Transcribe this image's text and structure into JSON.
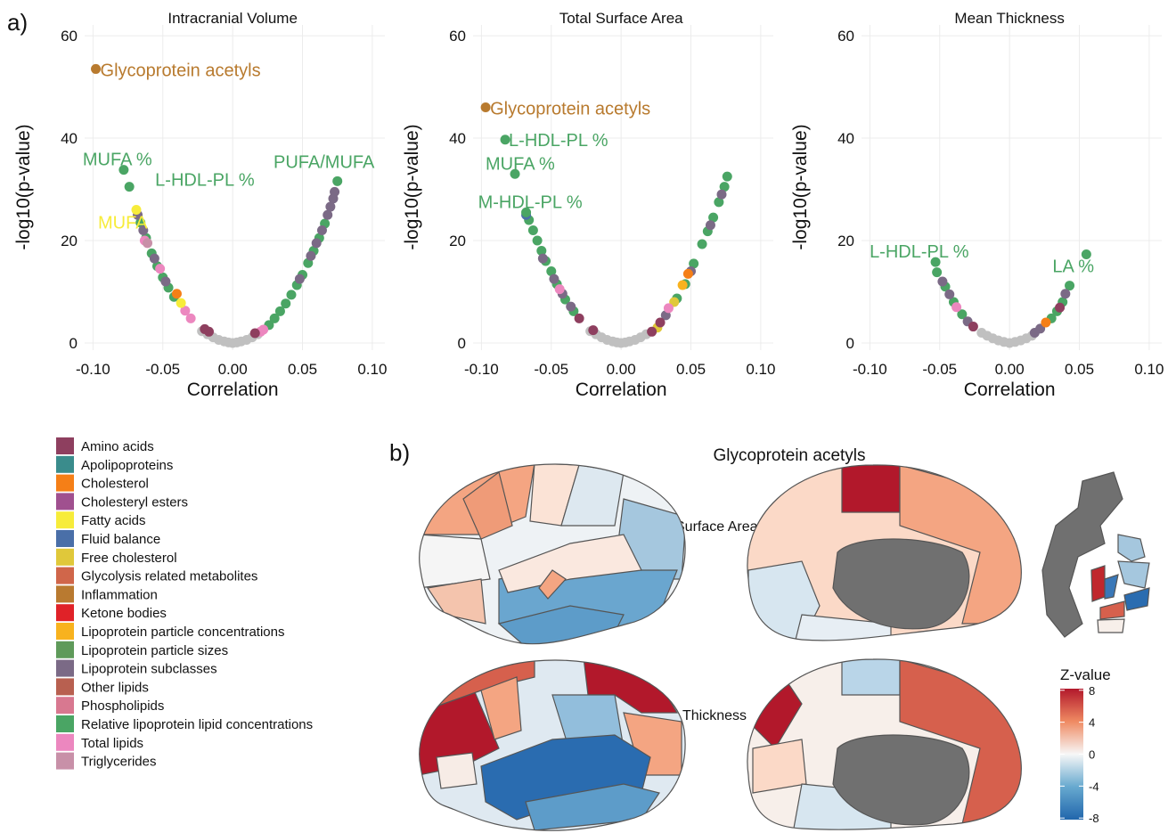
{
  "panel_labels": [
    "a)",
    "b)"
  ],
  "chart_data": [
    {
      "type": "scatter",
      "title": "Intracranial Volume",
      "x_label": "Correlation",
      "y_label": "-log10(p-value)",
      "xlim": [
        -0.106,
        0.109
      ],
      "ylim": [
        -1.4,
        62.1
      ],
      "xticks": [
        {
          "value": -0.1,
          "label": "-0.10"
        },
        {
          "value": -0.05,
          "label": "-0.05"
        },
        {
          "value": 0,
          "label": "0.00"
        },
        {
          "value": 0.05,
          "label": "0.05"
        },
        {
          "value": 0.1,
          "label": "0.10"
        }
      ],
      "yticks": [
        0,
        20,
        40,
        60
      ],
      "grid": true,
      "series": [
        {
          "color": "#c0c0c0",
          "x": [
            -0.022,
            -0.018,
            -0.014,
            -0.01,
            -0.006,
            -0.003,
            0,
            0.003,
            0.006,
            0.01,
            0.014,
            0.018
          ],
          "values": [
            2.3,
            1.7,
            1.1,
            0.6,
            0.3,
            0.1,
            0,
            0.1,
            0.3,
            0.6,
            1.1,
            1.7
          ]
        },
        {
          "color": "#4aa564",
          "x": [
            -0.066,
            -0.062,
            -0.058,
            -0.054,
            -0.05,
            -0.046,
            -0.042,
            0.026,
            0.03,
            0.034,
            0.038,
            0.042,
            0.046,
            0.05,
            0.054,
            0.058,
            0.062,
            0.066
          ],
          "values": [
            23.5,
            20.5,
            17.5,
            15,
            12.8,
            10.8,
            9,
            3.5,
            4.8,
            6.2,
            7.7,
            9.4,
            11.3,
            13.3,
            15.6,
            18,
            20.5,
            23.3
          ]
        },
        {
          "color": "#7b6a86",
          "x": [
            -0.068,
            -0.064,
            -0.056,
            -0.048,
            0.048,
            0.056,
            0.06,
            0.064,
            0.068,
            0.07,
            0.072,
            0.073
          ],
          "values": [
            25,
            22,
            16.5,
            12,
            12.5,
            17,
            19.5,
            22,
            25,
            26.6,
            28.2,
            29.5
          ]
        },
        {
          "color": "#ec87bf",
          "x": [
            -0.063,
            -0.052,
            -0.034,
            -0.03,
            0.02,
            0.022
          ],
          "values": [
            20,
            14.5,
            6.3,
            4.8,
            2.2,
            2.6
          ]
        },
        {
          "color": "#f57f17",
          "x": [
            -0.04
          ],
          "values": [
            9.6
          ]
        },
        {
          "color": "#f7ec3a",
          "x": [
            -0.037
          ],
          "values": [
            7.8
          ]
        },
        {
          "color": "#8e3f5f",
          "x": [
            -0.02,
            -0.017,
            0.016
          ],
          "values": [
            2.7,
            2.2,
            1.9
          ]
        },
        {
          "color": "#c890a8",
          "x": [
            -0.061
          ],
          "values": [
            19.5
          ]
        }
      ],
      "annotations": [
        {
          "text": "Glycoprotein acetyls",
          "x": -0.098,
          "y": 53.5,
          "color": "#b87a2e"
        },
        {
          "text": "MUFA %",
          "x": -0.078,
          "y": 33.8,
          "color": "#4aa564"
        },
        {
          "text": "L-HDL-PL %",
          "x": -0.074,
          "y": 30.5,
          "color": "#4aa564"
        },
        {
          "text": "MUFA",
          "x": -0.069,
          "y": 26,
          "color": "#f7ec3a"
        },
        {
          "text": "PUFA/MUFA",
          "x": 0.075,
          "y": 31.6,
          "color": "#4aa564"
        }
      ]
    },
    {
      "type": "scatter",
      "title": "Total Surface Area",
      "x_label": "Correlation",
      "y_label": "-log10(p-value)",
      "xlim": [
        -0.106,
        0.109
      ],
      "ylim": [
        -1.4,
        62.1
      ],
      "xticks": [
        {
          "value": -0.1,
          "label": "-0.10"
        },
        {
          "value": -0.05,
          "label": "-0.05"
        },
        {
          "value": 0,
          "label": "0.00"
        },
        {
          "value": 0.05,
          "label": "0.05"
        },
        {
          "value": 0.1,
          "label": "0.10"
        }
      ],
      "yticks": [
        0,
        20,
        40,
        60
      ],
      "grid": true,
      "series": [
        {
          "color": "#c0c0c0",
          "x": [
            -0.022,
            -0.018,
            -0.014,
            -0.01,
            -0.006,
            -0.003,
            0,
            0.003,
            0.006,
            0.01,
            0.014,
            0.018
          ],
          "values": [
            2.3,
            1.7,
            1.1,
            0.6,
            0.3,
            0.1,
            0,
            0.1,
            0.3,
            0.6,
            1.1,
            1.7
          ]
        },
        {
          "color": "#4aa564",
          "x": [
            -0.066,
            -0.063,
            -0.06,
            -0.057,
            -0.054,
            -0.05,
            -0.046,
            -0.04,
            -0.034,
            0.04,
            0.046,
            0.052,
            0.058,
            0.062,
            0.066,
            0.07,
            0.074,
            0.076
          ],
          "values": [
            24,
            22,
            20,
            18,
            16,
            14,
            11.5,
            8.5,
            6.2,
            8.7,
            11.5,
            15.5,
            19.3,
            21.8,
            24.5,
            27.5,
            30.5,
            32.5
          ]
        },
        {
          "color": "#7b6a86",
          "x": [
            -0.056,
            -0.048,
            -0.042,
            -0.036,
            0.032,
            0.05,
            0.064,
            0.072
          ],
          "values": [
            16.5,
            12.5,
            9.6,
            7.1,
            5.4,
            14,
            23,
            29
          ]
        },
        {
          "color": "#4a6fa8",
          "x": [
            -0.068
          ],
          "values": [
            25
          ]
        },
        {
          "color": "#f57f17",
          "x": [
            0.048
          ],
          "values": [
            13.5
          ]
        },
        {
          "color": "#f8b21e",
          "x": [
            0.044
          ],
          "values": [
            11.3
          ]
        },
        {
          "color": "#e0c83a",
          "x": [
            0.026,
            0.038
          ],
          "values": [
            3,
            8
          ]
        },
        {
          "color": "#8e3f5f",
          "x": [
            -0.03,
            -0.02,
            0.022,
            0.028
          ],
          "values": [
            4.8,
            2.5,
            2.2,
            4
          ]
        },
        {
          "color": "#ec87bf",
          "x": [
            -0.044,
            0.034
          ],
          "values": [
            10.5,
            6.8
          ]
        }
      ],
      "annotations": [
        {
          "text": "Glycoprotein acetyls",
          "x": -0.097,
          "y": 46,
          "color": "#b87a2e"
        },
        {
          "text": "L-HDL-PL %",
          "x": -0.083,
          "y": 39.7,
          "color": "#4aa564"
        },
        {
          "text": "MUFA %",
          "x": -0.076,
          "y": 33,
          "color": "#4aa564"
        },
        {
          "text": "M-HDL-PL %",
          "x": -0.068,
          "y": 25.5,
          "color": "#4aa564"
        }
      ]
    },
    {
      "type": "scatter",
      "title": "Mean Thickness",
      "x_label": "Correlation",
      "y_label": "-log10(p-value)",
      "xlim": [
        -0.106,
        0.109
      ],
      "ylim": [
        -1.4,
        62.1
      ],
      "xticks": [
        {
          "value": -0.1,
          "label": "-0.10"
        },
        {
          "value": -0.05,
          "label": "-0.05"
        },
        {
          "value": 0,
          "label": "0.00"
        },
        {
          "value": 0.05,
          "label": "0.05"
        },
        {
          "value": 0.1,
          "label": "0.10"
        }
      ],
      "yticks": [
        0,
        20,
        40,
        60
      ],
      "grid": true,
      "series": [
        {
          "color": "#c0c0c0",
          "x": [
            -0.02,
            -0.016,
            -0.012,
            -0.008,
            -0.004,
            0,
            0.004,
            0.008,
            0.012,
            0.016
          ],
          "values": [
            2,
            1.4,
            0.9,
            0.5,
            0.2,
            0,
            0.2,
            0.5,
            0.9,
            1.4
          ]
        },
        {
          "color": "#4aa564",
          "x": [
            -0.052,
            -0.046,
            -0.04,
            -0.034,
            0.03,
            0.034,
            0.038,
            0.043
          ],
          "values": [
            13.8,
            11,
            8,
            5.6,
            4.8,
            6.2,
            8,
            11.2
          ]
        },
        {
          "color": "#7b6a86",
          "x": [
            -0.048,
            -0.043,
            -0.03,
            0.018,
            0.022,
            0.04
          ],
          "values": [
            12,
            9.5,
            4.2,
            2,
            2.8,
            9.6
          ]
        },
        {
          "color": "#f57f17",
          "x": [
            0.026
          ],
          "values": [
            4
          ]
        },
        {
          "color": "#ec87bf",
          "x": [
            -0.038
          ],
          "values": [
            7
          ]
        },
        {
          "color": "#8e3f5f",
          "x": [
            -0.026,
            0.036
          ],
          "values": [
            3.2,
            6.9
          ]
        }
      ],
      "annotations": [
        {
          "text": "L-HDL-PL %",
          "x": -0.053,
          "y": 15.8,
          "color": "#4aa564"
        },
        {
          "text": "LA %",
          "x": 0.055,
          "y": 17.3,
          "color": "#4aa564"
        }
      ]
    }
  ],
  "legend": {
    "items": [
      {
        "name": "Amino acids",
        "color": "#8e3f5f"
      },
      {
        "name": "Apolipoproteins",
        "color": "#3a8c8c"
      },
      {
        "name": "Cholesterol",
        "color": "#f57f17"
      },
      {
        "name": "Cholesteryl esters",
        "color": "#a0508f"
      },
      {
        "name": "Fatty acids",
        "color": "#f7ec3a"
      },
      {
        "name": "Fluid balance",
        "color": "#4a6fa8"
      },
      {
        "name": "Free cholesterol",
        "color": "#e0c83a"
      },
      {
        "name": "Glycolysis related metabolites",
        "color": "#d0664a"
      },
      {
        "name": "Inflammation",
        "color": "#b97a30"
      },
      {
        "name": "Ketone bodies",
        "color": "#e02228"
      },
      {
        "name": "Lipoprotein particle concentrations",
        "color": "#f8b21e"
      },
      {
        "name": "Lipoprotein particle sizes",
        "color": "#5f9a5a"
      },
      {
        "name": "Lipoprotein subclasses",
        "color": "#7b6a86"
      },
      {
        "name": "Other lipids",
        "color": "#b86050"
      },
      {
        "name": "Phospholipids",
        "color": "#d87890"
      },
      {
        "name": "Relative lipoprotein lipid concentrations",
        "color": "#4aa564"
      },
      {
        "name": "Total lipids",
        "color": "#ec87bf"
      },
      {
        "name": "Triglycerides",
        "color": "#c890a8"
      }
    ]
  },
  "brain_map": {
    "title": "Glycoprotein acetyls",
    "row_labels": [
      "Surface Area",
      "Thickness"
    ],
    "colorbar": {
      "title": "Z-value",
      "lim": [
        -8.2,
        8.2
      ],
      "ticks": [
        8,
        4,
        0,
        -4,
        -8
      ]
    }
  }
}
